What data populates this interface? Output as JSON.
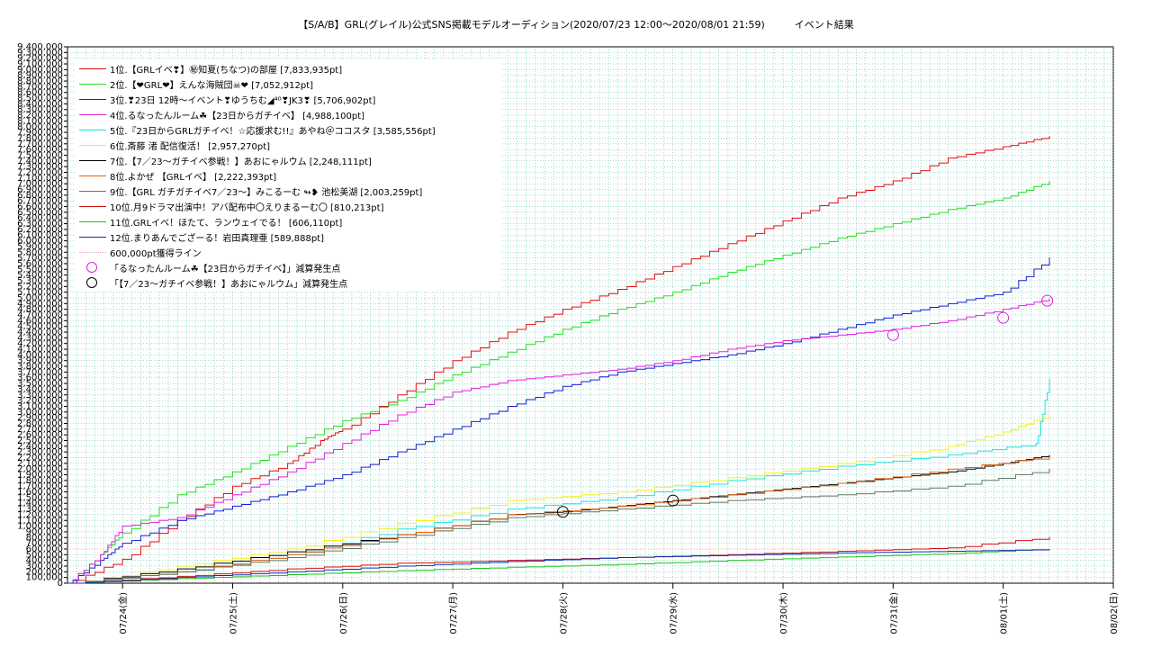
{
  "title": "【S/A/B】GRL(グレイル)公式SNS掲載モデルオーディション(2020/07/23 12:00〜2020/08/01 21:59)　　　イベント結果",
  "chart_data": {
    "type": "line",
    "title": "【S/A/B】GRL(グレイル)公式SNS掲載モデルオーディション(2020/07/23 12:00〜2020/08/01 21:59)　　　イベント結果",
    "xlabel": "",
    "ylabel": "",
    "x_ticks": [
      "07/24(金)",
      "07/25(土)",
      "07/26(日)",
      "07/27(月)",
      "07/28(火)",
      "07/29(水)",
      "07/30(木)",
      "07/31(金)",
      "08/01(土)",
      "08/02(日)"
    ],
    "x_range": [
      "07/23 12:00",
      "08/02 00:00"
    ],
    "ylim": [
      0,
      9400000
    ],
    "y_tick_step": 100000,
    "grid": true,
    "legend_position": "top-left",
    "series": [
      {
        "name": "1位.【GRLイベ❣】㊙知夏(ちなつ)の部屋 [7,833,935pt]",
        "color": "#e01010",
        "points": [
          [
            0,
            0
          ],
          [
            0.5,
            420000
          ],
          [
            1,
            1100000
          ],
          [
            1.5,
            1700000
          ],
          [
            2,
            2100000
          ],
          [
            2.3,
            2500000
          ],
          [
            2.5,
            2700000
          ],
          [
            3,
            3300000
          ],
          [
            3.5,
            3900000
          ],
          [
            4,
            4400000
          ],
          [
            4.5,
            4800000
          ],
          [
            5,
            5150000
          ],
          [
            5.5,
            5550000
          ],
          [
            6,
            5950000
          ],
          [
            6.5,
            6350000
          ],
          [
            7,
            6750000
          ],
          [
            7.5,
            7050000
          ],
          [
            8,
            7450000
          ],
          [
            8.5,
            7650000
          ],
          [
            8.92,
            7833935
          ]
        ]
      },
      {
        "name": "2位.【❤GRL❤】えんな海賊団☠❤ [7,052,912pt]",
        "color": "#20e020",
        "points": [
          [
            0,
            0
          ],
          [
            0.3,
            500000
          ],
          [
            0.5,
            880000
          ],
          [
            1,
            1550000
          ],
          [
            1.5,
            1950000
          ],
          [
            2,
            2400000
          ],
          [
            2.5,
            2850000
          ],
          [
            3,
            3200000
          ],
          [
            3.5,
            3650000
          ],
          [
            4,
            4050000
          ],
          [
            4.5,
            4450000
          ],
          [
            5,
            4800000
          ],
          [
            5.5,
            5100000
          ],
          [
            6,
            5450000
          ],
          [
            6.5,
            5750000
          ],
          [
            7,
            6050000
          ],
          [
            7.5,
            6300000
          ],
          [
            8,
            6550000
          ],
          [
            8.5,
            6750000
          ],
          [
            8.92,
            7052912
          ]
        ]
      },
      {
        "name": "3位.❣23日 12時〜イベント❣ゆうちむ◢⁴⁰❣JK3❣ [5,706,902pt]",
        "color": "#1020d0",
        "points": [
          [
            0,
            0
          ],
          [
            0.3,
            400000
          ],
          [
            0.5,
            700000
          ],
          [
            1,
            1100000
          ],
          [
            1.5,
            1350000
          ],
          [
            2,
            1600000
          ],
          [
            2.5,
            1900000
          ],
          [
            3,
            2300000
          ],
          [
            3.5,
            2700000
          ],
          [
            4,
            3100000
          ],
          [
            4.5,
            3450000
          ],
          [
            5,
            3700000
          ],
          [
            5.5,
            3850000
          ],
          [
            6,
            4000000
          ],
          [
            6.5,
            4200000
          ],
          [
            7,
            4450000
          ],
          [
            7.5,
            4700000
          ],
          [
            8,
            4900000
          ],
          [
            8.5,
            5100000
          ],
          [
            8.92,
            5706902
          ]
        ]
      },
      {
        "name": "4位.るなったんルーム☘【23日からガチイベ】 [4,988,100pt]",
        "color": "#e020e0",
        "points": [
          [
            0,
            0
          ],
          [
            0.3,
            500000
          ],
          [
            0.5,
            1000000
          ],
          [
            1,
            1150000
          ],
          [
            1.5,
            1550000
          ],
          [
            2,
            1950000
          ],
          [
            2.5,
            2450000
          ],
          [
            3,
            2950000
          ],
          [
            3.5,
            3350000
          ],
          [
            4,
            3550000
          ],
          [
            4.5,
            3650000
          ],
          [
            5,
            3750000
          ],
          [
            5.5,
            3900000
          ],
          [
            6,
            4100000
          ],
          [
            6.5,
            4250000
          ],
          [
            7,
            4350000
          ],
          [
            7.5,
            4450000
          ],
          [
            8,
            4600000
          ],
          [
            8.5,
            4800000
          ],
          [
            8.92,
            4988100
          ]
        ]
      },
      {
        "name": "5位.『23日からGRLガチイベ！☆応援求む!!』あやね＠ココスタ [3,585,556pt]",
        "color": "#20e0e0",
        "points": [
          [
            0,
            0
          ],
          [
            1,
            200000
          ],
          [
            2,
            500000
          ],
          [
            3,
            950000
          ],
          [
            4,
            1300000
          ],
          [
            5,
            1500000
          ],
          [
            6,
            1800000
          ],
          [
            7,
            2050000
          ],
          [
            8,
            2250000
          ],
          [
            8.8,
            2450000
          ],
          [
            8.92,
            3585556
          ]
        ]
      },
      {
        "name": "6位.斎藤 渚 配信復活！ [2,957,270pt]",
        "color": "#f0f020",
        "points": [
          [
            0,
            0
          ],
          [
            1,
            300000
          ],
          [
            2,
            600000
          ],
          [
            3,
            1050000
          ],
          [
            4,
            1450000
          ],
          [
            5,
            1600000
          ],
          [
            6,
            1850000
          ],
          [
            7,
            2100000
          ],
          [
            8,
            2400000
          ],
          [
            8.5,
            2650000
          ],
          [
            8.92,
            2957270
          ]
        ]
      },
      {
        "name": "7位.【7／23〜ガチイベ参戦！】あおにゃルウム [2,248,111pt]",
        "color": "#000000",
        "points": [
          [
            0,
            0
          ],
          [
            1,
            250000
          ],
          [
            2,
            550000
          ],
          [
            3,
            850000
          ],
          [
            4,
            1200000
          ],
          [
            4.5,
            1250000
          ],
          [
            5,
            1350000
          ],
          [
            5.5,
            1450000
          ],
          [
            6,
            1550000
          ],
          [
            6.5,
            1650000
          ],
          [
            7,
            1750000
          ],
          [
            7.5,
            1850000
          ],
          [
            8,
            1950000
          ],
          [
            8.5,
            2100000
          ],
          [
            8.92,
            2248111
          ]
        ]
      },
      {
        "name": "8位.よかぜ 【GRLイベ】 [2,222,393pt]",
        "color": "#e06010",
        "points": [
          [
            0,
            0
          ],
          [
            1,
            200000
          ],
          [
            2,
            500000
          ],
          [
            3,
            850000
          ],
          [
            4,
            1200000
          ],
          [
            5,
            1350000
          ],
          [
            6,
            1550000
          ],
          [
            7,
            1750000
          ],
          [
            8,
            2000000
          ],
          [
            8.92,
            2222393
          ]
        ]
      },
      {
        "name": "9位.【GRL ガチガチイベ7／23〜】みこるーむ ↬❥ 池松美湖 [2,003,259pt]",
        "color": "#607860",
        "points": [
          [
            0,
            0
          ],
          [
            1,
            200000
          ],
          [
            2,
            450000
          ],
          [
            3,
            800000
          ],
          [
            4,
            1150000
          ],
          [
            5,
            1300000
          ],
          [
            6,
            1450000
          ],
          [
            7,
            1550000
          ],
          [
            8,
            1700000
          ],
          [
            8.92,
            2003259
          ]
        ]
      },
      {
        "name": "10位.月9ドラマ出演中！アバ配布中〇えりまるーむ〇 [810,213pt]",
        "color": "#d01010",
        "points": [
          [
            0,
            0
          ],
          [
            1,
            120000
          ],
          [
            2,
            250000
          ],
          [
            3,
            350000
          ],
          [
            4,
            400000
          ],
          [
            5,
            450000
          ],
          [
            6,
            500000
          ],
          [
            7,
            560000
          ],
          [
            8,
            620000
          ],
          [
            8.92,
            810213
          ]
        ]
      },
      {
        "name": "11位.GRLイベ！ほたて、ランウェイでる！ [606,110pt]",
        "color": "#20c020",
        "points": [
          [
            0,
            0
          ],
          [
            1,
            80000
          ],
          [
            2,
            150000
          ],
          [
            3,
            220000
          ],
          [
            4,
            280000
          ],
          [
            5,
            330000
          ],
          [
            6,
            400000
          ],
          [
            7,
            460000
          ],
          [
            8,
            520000
          ],
          [
            8.92,
            606110
          ]
        ]
      },
      {
        "name": "12位.まりあんでござーる！岩田真理亜 [589,888pt]",
        "color": "#1030b0",
        "points": [
          [
            0,
            0
          ],
          [
            1,
            100000
          ],
          [
            2,
            200000
          ],
          [
            3,
            300000
          ],
          [
            4,
            380000
          ],
          [
            5,
            450000
          ],
          [
            6,
            490000
          ],
          [
            7,
            530000
          ],
          [
            8,
            560000
          ],
          [
            8.92,
            589888
          ]
        ]
      }
    ],
    "reference_line": {
      "name": "600,000pt獲得ライン",
      "value": 600000,
      "color": "#f4a6a6"
    },
    "markers": [
      {
        "name": "「るなったんルーム☘【23日からガチイベ】」減算発生点",
        "color": "#e020e0",
        "points": [
          [
            7.5,
            4350000
          ],
          [
            8.5,
            4650000
          ],
          [
            8.9,
            4950000
          ]
        ]
      },
      {
        "name": "「【7／23〜ガチイベ参戦！】あおにゃルウム」減算発生点",
        "color": "#000000",
        "points": [
          [
            4.5,
            1250000
          ],
          [
            5.5,
            1450000
          ]
        ]
      }
    ]
  }
}
